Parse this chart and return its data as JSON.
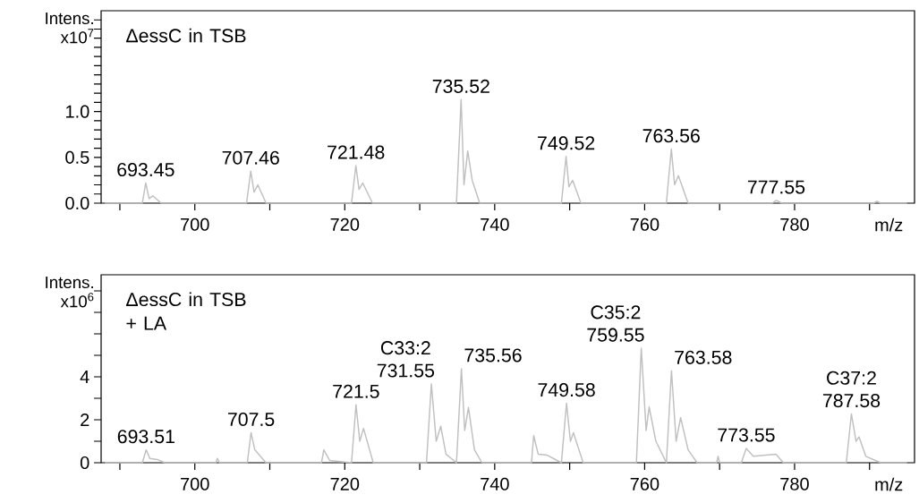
{
  "chart_data": [
    {
      "type": "line",
      "ylabel": "Intens. x10$^{7}$",
      "xlabel": "m/z",
      "annotations": [
        "ΔessC in TSB",
        {
          "text": "693.45",
          "x": 693.45,
          "y": 0.22
        },
        {
          "text": "707.46",
          "x": 707.46,
          "y": 0.35
        },
        {
          "text": "721.48",
          "x": 721.48,
          "y": 0.41
        },
        {
          "text": "735.52",
          "x": 735.52,
          "y": 1.13
        },
        {
          "text": "749.52",
          "x": 749.52,
          "y": 0.51
        },
        {
          "text": "763.56",
          "x": 763.56,
          "y": 0.59
        },
        {
          "text": "777.55",
          "x": 777.55,
          "y": 0.03
        }
      ],
      "series": [
        {
          "color": "#c0c0c0",
          "x": [
            688,
            693,
            693.45,
            693.9,
            694.4,
            695.5,
            706.9,
            707.46,
            707.9,
            708.4,
            709.5,
            720.9,
            721.48,
            721.9,
            722.4,
            723.7,
            734.9,
            735.52,
            735.9,
            736.4,
            737,
            738,
            748.9,
            749.52,
            749.9,
            750.4,
            751.5,
            762.9,
            763.56,
            764,
            764.5,
            765.8,
            777,
            777.55,
            778.3,
            790.5,
            791,
            791.5,
            795
          ],
          "values": [
            0,
            0,
            0.22,
            0.05,
            0.08,
            0,
            0,
            0.35,
            0.12,
            0.2,
            0,
            0,
            0.41,
            0.15,
            0.22,
            0,
            0,
            1.13,
            0.2,
            0.57,
            0.25,
            0,
            0,
            0.51,
            0.18,
            0.25,
            0,
            0,
            0.59,
            0.2,
            0.3,
            0,
            0,
            0.03,
            0,
            0,
            0.02,
            0,
            0
          ]
        }
      ],
      "xlim": [
        687.5,
        796
      ],
      "ylim": [
        0,
        2.1
      ],
      "xticks": [
        {
          "value": 690,
          "label": null
        },
        700,
        {
          "value": 710,
          "label": null
        },
        720,
        {
          "value": 730,
          "label": null
        },
        740,
        {
          "value": 750,
          "label": null
        },
        760,
        {
          "value": 770,
          "label": null
        },
        780,
        {
          "value": 790,
          "label": null
        }
      ],
      "yticks": [
        {
          "value": 0,
          "label": "0.0"
        },
        {
          "value": 0.1,
          "label": null
        },
        {
          "value": 0.2,
          "label": null
        },
        {
          "value": 0.3,
          "label": null
        },
        {
          "value": 0.4,
          "label": null
        },
        0.5,
        {
          "value": 0.6,
          "label": null
        },
        {
          "value": 0.7,
          "label": null
        },
        {
          "value": 0.8,
          "label": null
        },
        {
          "value": 0.9,
          "label": null
        },
        {
          "value": 1,
          "label": "1.0"
        },
        {
          "value": 1.1,
          "label": null
        },
        {
          "value": 1.2,
          "label": null
        },
        {
          "value": 1.3,
          "label": null
        },
        {
          "value": 1.4,
          "label": null
        },
        {
          "value": 1.5,
          "label": null
        },
        {
          "value": 1.6,
          "label": null
        },
        {
          "value": 1.7,
          "label": null
        },
        {
          "value": 1.8,
          "label": null
        },
        {
          "value": 1.9,
          "label": null
        },
        {
          "value": 2.0,
          "label": null
        }
      ],
      "marker": "none",
      "line_style": "solid",
      "grid": false
    },
    {
      "type": "line",
      "ylabel": "Intens. x10$^{6}$",
      "xlabel": "m/z",
      "annotations": [
        "ΔessC in TSB + LA",
        {
          "text": "693.51",
          "x": 693.51,
          "y": 0.6
        },
        {
          "text": "707.5",
          "x": 707.5,
          "y": 1.4
        },
        {
          "text": "721.5",
          "x": 721.5,
          "y": 2.7
        },
        {
          "text": "C33:2 731.55",
          "x": 731.55,
          "y": 3.67
        },
        {
          "text": "735.56",
          "x": 735.56,
          "y": 4.38
        },
        {
          "text": "749.58",
          "x": 749.58,
          "y": 2.77
        },
        {
          "text": "C35:2 759.55",
          "x": 759.55,
          "y": 5.33
        },
        {
          "text": "763.58",
          "x": 763.58,
          "y": 4.28
        },
        {
          "text": "773.55",
          "x": 773.55,
          "y": 0.67
        },
        {
          "text": "C37:2 787.58",
          "x": 787.58,
          "y": 2.27
        }
      ],
      "series": [
        {
          "color": "#c0c0c0",
          "x": [
            688,
            693,
            693.51,
            694,
            695,
            696,
            702.8,
            703,
            703.3,
            707,
            707.5,
            708,
            709.5,
            716.9,
            717.2,
            718,
            720.9,
            721.5,
            722,
            722.5,
            723.8,
            730.9,
            731.55,
            732.2,
            732.8,
            733.5,
            734.9,
            735.56,
            736,
            736.5,
            737.3,
            738.3,
            744.9,
            745.2,
            745.8,
            747,
            748.9,
            749.58,
            750.1,
            750.5,
            751.8,
            758.9,
            759.55,
            760.2,
            760.6,
            761.5,
            762.9,
            763.58,
            764.2,
            764.8,
            765.8,
            767,
            769.6,
            769.8,
            770,
            772.9,
            773.55,
            774.5,
            777.5,
            778.5,
            786.9,
            787.58,
            788.2,
            788.6,
            789.5,
            791.5,
            795
          ],
          "values": [
            0,
            0,
            0.6,
            0.2,
            0.15,
            0,
            0,
            0.2,
            0,
            0,
            1.4,
            0.6,
            0,
            0,
            0.6,
            0.1,
            0,
            2.7,
            1.0,
            1.6,
            0,
            0,
            3.67,
            1.0,
            1.7,
            0.4,
            0,
            4.38,
            1.5,
            2.57,
            0.6,
            0,
            0,
            1.26,
            0.4,
            0.35,
            0,
            2.77,
            1.0,
            1.4,
            0,
            0,
            5.33,
            1.5,
            2.6,
            1.0,
            0,
            4.28,
            1.0,
            2.1,
            0.6,
            0,
            0,
            0.3,
            0,
            0,
            0.67,
            0.3,
            0.4,
            0,
            0,
            2.27,
            1.0,
            1.2,
            0.3,
            0,
            0
          ]
        }
      ],
      "xlim": [
        687.5,
        796
      ],
      "ylim": [
        0,
        8.75
      ],
      "xticks": [
        {
          "value": 690,
          "label": null
        },
        700,
        {
          "value": 710,
          "label": null
        },
        720,
        {
          "value": 730,
          "label": null
        },
        740,
        {
          "value": 750,
          "label": null
        },
        760,
        {
          "value": 770,
          "label": null
        },
        780,
        {
          "value": 790,
          "label": null
        }
      ],
      "yticks": [
        0,
        {
          "value": 1,
          "label": null
        },
        2,
        {
          "value": 3,
          "label": null
        },
        4,
        {
          "value": 5,
          "label": null
        },
        {
          "value": 6,
          "label": null
        },
        {
          "value": 7,
          "label": null
        },
        {
          "value": 8,
          "label": null
        }
      ],
      "marker": "none",
      "line_style": "solid",
      "grid": false
    }
  ]
}
